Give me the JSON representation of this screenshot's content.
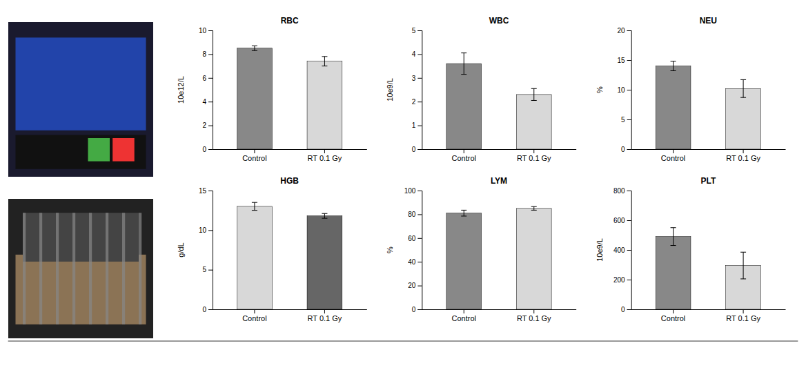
{
  "chart_data": [
    {
      "type": "bar",
      "title": "RBC",
      "y_label": "10e12/L",
      "categories": [
        "Control",
        "RT 0.1 Gy"
      ],
      "values": [
        8.5,
        7.4
      ],
      "errors": [
        0.2,
        0.4
      ],
      "colors": [
        "#888888",
        "#d8d8d8"
      ],
      "ylim": [
        0,
        10
      ],
      "yticks": [
        0,
        2,
        4,
        6,
        8,
        10
      ],
      "grid": false
    },
    {
      "type": "bar",
      "title": "WBC",
      "y_label": "10e9/L",
      "categories": [
        "Control",
        "RT 0.1 Gy"
      ],
      "values": [
        3.6,
        2.3
      ],
      "errors": [
        0.45,
        0.25
      ],
      "colors": [
        "#888888",
        "#d8d8d8"
      ],
      "ylim": [
        0,
        5
      ],
      "yticks": [
        0,
        1,
        2,
        3,
        4,
        5
      ],
      "grid": false
    },
    {
      "type": "bar",
      "title": "NEU",
      "y_label": "%",
      "categories": [
        "Control",
        "RT 0.1 Gy"
      ],
      "values": [
        14.0,
        10.2
      ],
      "errors": [
        0.8,
        1.5
      ],
      "colors": [
        "#888888",
        "#d8d8d8"
      ],
      "ylim": [
        0,
        20
      ],
      "yticks": [
        0,
        5,
        10,
        15,
        20
      ],
      "grid": false
    },
    {
      "type": "bar",
      "title": "HGB",
      "y_label": "g/dL",
      "categories": [
        "Control",
        "RT 0.1 Gy"
      ],
      "values": [
        13.0,
        11.8
      ],
      "errors": [
        0.5,
        0.3
      ],
      "colors": [
        "#d8d8d8",
        "#666666"
      ],
      "ylim": [
        0,
        15
      ],
      "yticks": [
        0,
        5,
        10,
        15
      ],
      "grid": false
    },
    {
      "type": "bar",
      "title": "LYM",
      "y_label": "%",
      "categories": [
        "Control",
        "RT 0.1 Gy"
      ],
      "values": [
        81.0,
        85.0
      ],
      "errors": [
        2.5,
        1.5
      ],
      "colors": [
        "#888888",
        "#d8d8d8"
      ],
      "ylim": [
        0,
        100
      ],
      "yticks": [
        0,
        20,
        40,
        60,
        80,
        100
      ],
      "grid": false
    },
    {
      "type": "bar",
      "title": "PLT",
      "y_label": "10e9/L",
      "categories": [
        "Control",
        "RT 0.1 Gy"
      ],
      "values": [
        490,
        295
      ],
      "errors": [
        60,
        90
      ],
      "colors": [
        "#888888",
        "#d8d8d8"
      ],
      "ylim": [
        0,
        800
      ],
      "yticks": [
        0,
        200,
        400,
        600,
        800
      ],
      "grid": false
    }
  ]
}
